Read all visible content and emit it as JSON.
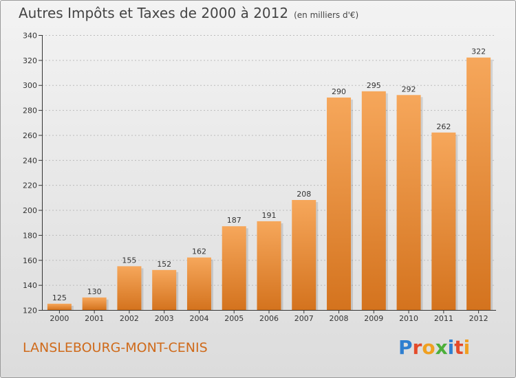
{
  "header": {
    "title": "Autres Impôts et Taxes de 2000 à 2012",
    "subtitle": "(en milliers d'€)"
  },
  "footer": {
    "commune": "LANSLEBOURG-MONT-CENIS",
    "logo_text": "Proxiti",
    "logo_letters": [
      {
        "ch": "P",
        "color": "#2f7fd0"
      },
      {
        "ch": "r",
        "color": "#e44b2a"
      },
      {
        "ch": "o",
        "color": "#f0a020"
      },
      {
        "ch": "x",
        "color": "#4caf3a"
      },
      {
        "ch": "i",
        "color": "#2f7fd0"
      },
      {
        "ch": "t",
        "color": "#e44b2a"
      },
      {
        "ch": "i",
        "color": "#f0a020"
      }
    ]
  },
  "colors": {
    "bar_top": "#f6a75b",
    "bar_bottom": "#d4731e",
    "axis": "#333333",
    "grid": "#bbbbbb"
  },
  "chart_data": {
    "type": "bar",
    "title": "Autres Impôts et Taxes de 2000 à 2012",
    "subtitle": "(en milliers d'€)",
    "categories": [
      "2000",
      "2001",
      "2002",
      "2003",
      "2004",
      "2005",
      "2006",
      "2007",
      "2008",
      "2009",
      "2010",
      "2011",
      "2012"
    ],
    "values": [
      125,
      130,
      155,
      152,
      162,
      187,
      191,
      208,
      290,
      295,
      292,
      262,
      322
    ],
    "ylim": [
      120,
      340
    ],
    "yticks": [
      120,
      140,
      160,
      180,
      200,
      220,
      240,
      260,
      280,
      300,
      320,
      340
    ],
    "grid": true,
    "xlabel": "",
    "ylabel": ""
  }
}
